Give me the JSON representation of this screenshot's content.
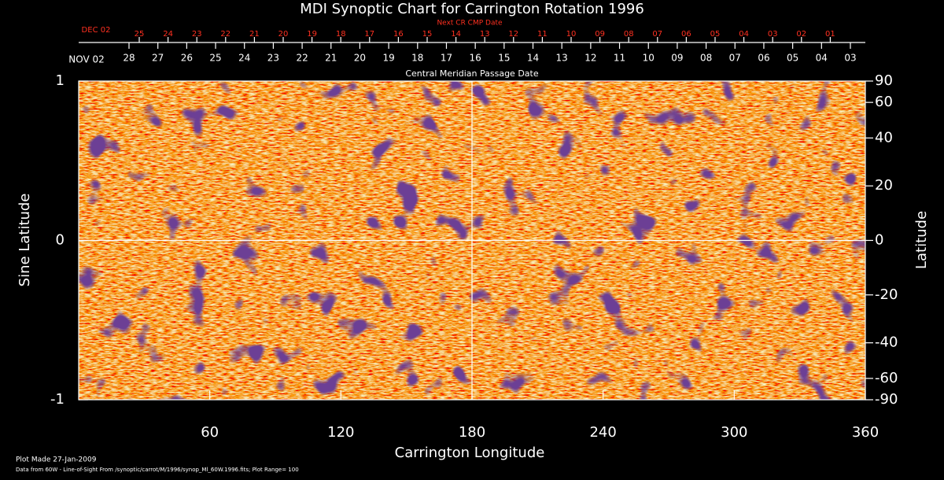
{
  "chart_data": {
    "type": "map",
    "title": "MDI Synoptic Chart for Carrington Rotation 1996",
    "xlabel": "Carrington Longitude",
    "ylabel": "Sine Latitude",
    "y2label": "Latitude",
    "xlim": [
      0,
      360
    ],
    "xticks": [
      60,
      120,
      180,
      240,
      300,
      360
    ],
    "ylim": [
      -1,
      1
    ],
    "yticks": [
      -1,
      0,
      1
    ],
    "y2lim": [
      -90,
      90
    ],
    "y2ticks": [
      -90,
      -60,
      -40,
      -20,
      0,
      20,
      40,
      60,
      90
    ],
    "y2scale": "sine",
    "top_axis": {
      "label": "Central Meridian Passage Date",
      "start_label": "NOV 02",
      "ticks": [
        "28",
        "27",
        "26",
        "25",
        "24",
        "23",
        "22",
        "21",
        "20",
        "19",
        "18",
        "17",
        "16",
        "15",
        "14",
        "13",
        "12",
        "11",
        "10",
        "09",
        "08",
        "07",
        "06",
        "05",
        "04",
        "03"
      ]
    },
    "next_axis": {
      "label": "Next CR CMP Date",
      "start_label": "DEC 02",
      "ticks": [
        "25",
        "24",
        "23",
        "22",
        "21",
        "20",
        "19",
        "18",
        "17",
        "16",
        "15",
        "14",
        "13",
        "12",
        "11",
        "10",
        "09",
        "08",
        "07",
        "06",
        "05",
        "04",
        "03",
        "02",
        "01"
      ]
    },
    "footer": [
      "Plot Made 27-Jan-2009",
      "Data from 60W - Line-of-Sight From /synoptic/carrot/M/1996/synop_Ml_60W.1996.fits; Plot Range=  100"
    ]
  }
}
